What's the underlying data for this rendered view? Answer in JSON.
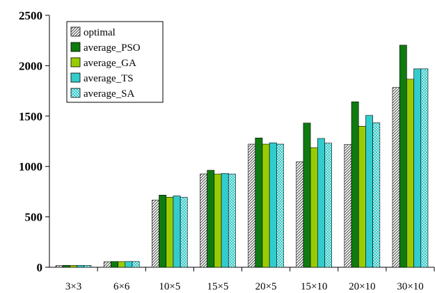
{
  "chart_data": {
    "type": "bar",
    "title": "",
    "xlabel": "",
    "ylabel": "",
    "ylim": [
      0,
      2500
    ],
    "yticks": [
      0,
      500,
      1000,
      1500,
      2000,
      2500
    ],
    "grid": false,
    "legend_position": "top-left",
    "categories": [
      "3×3",
      "6×6",
      "10×5",
      "15×5",
      "20×5",
      "15×10",
      "20×10",
      "30×10"
    ],
    "series": [
      {
        "name": "optimal",
        "color": "#d9d9d9",
        "pattern": "hatch",
        "values": [
          17,
          55,
          666,
          926,
          1222,
          1046,
          1218,
          1784
        ]
      },
      {
        "name": "average_PSO",
        "color": "#0f7a0f",
        "pattern": "solid",
        "values": [
          19,
          57,
          716,
          962,
          1283,
          1431,
          1642,
          2204
        ]
      },
      {
        "name": "average_GA",
        "color": "#99cc00",
        "pattern": "solid",
        "values": [
          18,
          56,
          695,
          925,
          1222,
          1187,
          1400,
          1866
        ]
      },
      {
        "name": "average_TS",
        "color": "#33cccc",
        "pattern": "solid",
        "values": [
          18,
          57,
          708,
          931,
          1235,
          1278,
          1507,
          1969
        ]
      },
      {
        "name": "average_SA",
        "color": "#33cccc",
        "pattern": "dots",
        "values": [
          18,
          57,
          694,
          925,
          1222,
          1232,
          1434,
          1969
        ]
      }
    ]
  }
}
